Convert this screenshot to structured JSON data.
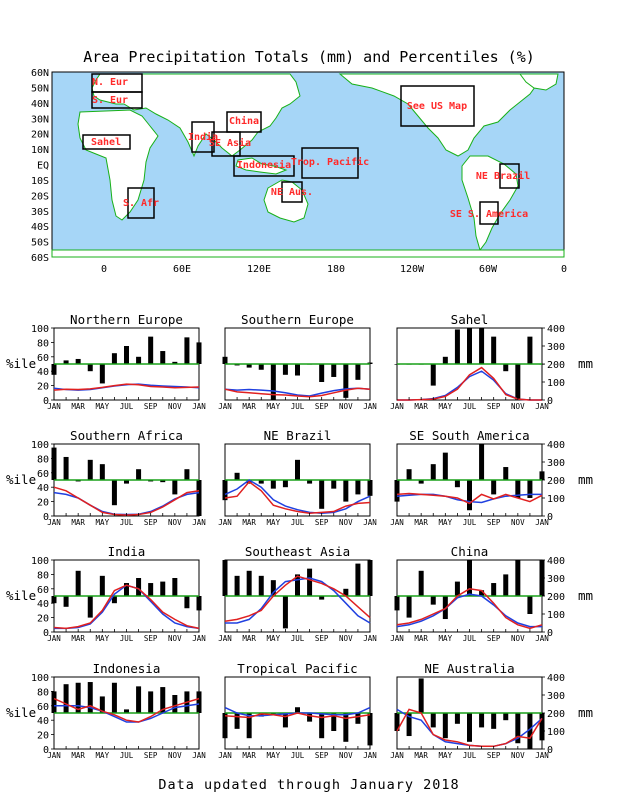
{
  "title": "Area Precipitation Totals (mm) and Percentiles (%)",
  "footer": "Data updated through January 2018",
  "colors": {
    "ocean": "#a6d6f7",
    "land": "#ffffff",
    "coast": "#18b018",
    "region_text": "#ff2a2a",
    "precip_line": "#e02020",
    "normal_line": "#2040e0",
    "median_line": "#18a018",
    "bar": "#000000"
  },
  "map": {
    "lat_labels": [
      "60N",
      "50N",
      "40N",
      "30N",
      "20N",
      "10N",
      "EQ",
      "10S",
      "20S",
      "30S",
      "40S",
      "50S",
      "60S"
    ],
    "lon_labels": [
      "0",
      "60E",
      "120E",
      "180",
      "120W",
      "60W",
      "0"
    ],
    "regions": [
      {
        "label": "N. Eur"
      },
      {
        "label": "S. Eur"
      },
      {
        "label": "Sahel"
      },
      {
        "label": "S. Afr"
      },
      {
        "label": "India"
      },
      {
        "label": "China"
      },
      {
        "label": "SE Asia"
      },
      {
        "label": "Indonesia"
      },
      {
        "label": "Trop. Pacific"
      },
      {
        "label": "NE Aus."
      },
      {
        "label": "See US Map"
      },
      {
        "label": "NE Brazil"
      },
      {
        "label": "SE S. America"
      }
    ]
  },
  "axes": {
    "left_label": "%ile",
    "right_label": "mm",
    "pct_ticks": [
      "0",
      "20",
      "40",
      "60",
      "80",
      "100"
    ],
    "mm_ticks": [
      "0",
      "100",
      "200",
      "300",
      "400"
    ],
    "months": [
      "JAN",
      "MAR",
      "MAY",
      "JUL",
      "SEP",
      "NOV",
      "JAN"
    ]
  },
  "chart_data": [
    {
      "type": "bar",
      "title": "Northern Europe",
      "pct": [
        35,
        55,
        57,
        40,
        23,
        65,
        75,
        60,
        88,
        68,
        53,
        87,
        80
      ],
      "precip": [
        55,
        60,
        58,
        62,
        70,
        80,
        88,
        85,
        75,
        72,
        68,
        70,
        72
      ],
      "normal": [
        65,
        58,
        55,
        58,
        68,
        78,
        85,
        88,
        82,
        78,
        75,
        72,
        68
      ]
    },
    {
      "type": "bar",
      "title": "Southern Europe",
      "pct": [
        60,
        48,
        45,
        42,
        0,
        35,
        34,
        50,
        25,
        32,
        3,
        28,
        52
      ],
      "precip": [
        60,
        45,
        40,
        35,
        30,
        28,
        22,
        18,
        25,
        40,
        55,
        65,
        60
      ],
      "normal": [
        60,
        55,
        58,
        55,
        50,
        40,
        28,
        22,
        38,
        52,
        62,
        65,
        60
      ]
    },
    {
      "type": "bar",
      "title": "Sahel",
      "pct": [
        50,
        50,
        50,
        20,
        60,
        98,
        100,
        100,
        88,
        40,
        0,
        88,
        50
      ],
      "precip": [
        0,
        0,
        2,
        5,
        20,
        60,
        140,
        180,
        120,
        30,
        5,
        0,
        0
      ],
      "normal": [
        0,
        0,
        2,
        8,
        25,
        70,
        130,
        160,
        110,
        35,
        5,
        0,
        0
      ]
    },
    {
      "type": "bar",
      "title": "Southern Africa",
      "pct": [
        95,
        82,
        48,
        78,
        72,
        15,
        45,
        65,
        48,
        47,
        30,
        65,
        0
      ],
      "precip": [
        160,
        140,
        100,
        60,
        20,
        8,
        5,
        8,
        20,
        50,
        90,
        130,
        140
      ],
      "normal": [
        130,
        120,
        100,
        60,
        25,
        10,
        8,
        10,
        25,
        55,
        95,
        120,
        130
      ]
    },
    {
      "type": "bar",
      "title": "NE Brazil",
      "pct": [
        22,
        60,
        45,
        45,
        38,
        40,
        78,
        45,
        10,
        38,
        20,
        30,
        28
      ],
      "precip": [
        100,
        110,
        190,
        140,
        60,
        40,
        25,
        15,
        20,
        25,
        55,
        70,
        75
      ],
      "normal": [
        120,
        150,
        200,
        160,
        90,
        55,
        35,
        20,
        15,
        20,
        40,
        80,
        110
      ]
    },
    {
      "type": "bar",
      "title": "SE South America",
      "pct": [
        20,
        65,
        45,
        72,
        88,
        40,
        8,
        100,
        30,
        68,
        25,
        25,
        62
      ],
      "precip": [
        120,
        125,
        120,
        115,
        110,
        100,
        70,
        120,
        95,
        120,
        100,
        80,
        115
      ],
      "normal": [
        110,
        115,
        120,
        120,
        110,
        90,
        80,
        75,
        95,
        110,
        115,
        120,
        120
      ]
    },
    {
      "type": "bar",
      "title": "India",
      "pct": [
        40,
        35,
        85,
        20,
        78,
        40,
        68,
        75,
        68,
        70,
        75,
        33,
        30
      ],
      "precip": [
        25,
        20,
        30,
        50,
        120,
        230,
        260,
        240,
        180,
        110,
        70,
        35,
        20
      ],
      "normal": [
        20,
        20,
        25,
        45,
        110,
        210,
        260,
        240,
        170,
        100,
        50,
        30,
        20
      ]
    },
    {
      "type": "bar",
      "title": "Southeast Asia",
      "pct": [
        100,
        78,
        85,
        78,
        72,
        5,
        80,
        88,
        45,
        50,
        60,
        95,
        100
      ],
      "precip": [
        60,
        70,
        90,
        120,
        200,
        260,
        310,
        290,
        270,
        240,
        200,
        140,
        80
      ],
      "normal": [
        50,
        50,
        70,
        130,
        220,
        280,
        290,
        300,
        280,
        230,
        160,
        90,
        50
      ]
    },
    {
      "type": "bar",
      "title": "China",
      "pct": [
        30,
        20,
        85,
        38,
        18,
        70,
        100,
        58,
        68,
        80,
        100,
        25,
        100
      ],
      "precip": [
        40,
        50,
        70,
        100,
        130,
        200,
        240,
        230,
        160,
        80,
        40,
        20,
        40
      ],
      "normal": [
        30,
        40,
        60,
        90,
        130,
        190,
        210,
        200,
        150,
        90,
        50,
        30,
        30
      ]
    },
    {
      "type": "bar",
      "title": "Indonesia",
      "pct": [
        80,
        90,
        92,
        93,
        73,
        92,
        55,
        87,
        80,
        86,
        75,
        80,
        80
      ],
      "precip": [
        280,
        250,
        220,
        240,
        210,
        190,
        160,
        150,
        180,
        220,
        240,
        260,
        280
      ],
      "normal": [
        240,
        240,
        240,
        230,
        210,
        180,
        150,
        150,
        170,
        200,
        230,
        240,
        250
      ]
    },
    {
      "type": "bar",
      "title": "Tropical Pacific",
      "pct": [
        15,
        28,
        15,
        45,
        48,
        30,
        58,
        38,
        15,
        25,
        10,
        35,
        5
      ],
      "precip": [
        185,
        180,
        175,
        195,
        190,
        180,
        200,
        185,
        175,
        185,
        170,
        180,
        190
      ],
      "normal": [
        230,
        200,
        185,
        185,
        190,
        195,
        200,
        200,
        195,
        190,
        190,
        200,
        230
      ]
    },
    {
      "type": "bar",
      "title": "NE Australia",
      "pct": [
        25,
        18,
        98,
        30,
        15,
        35,
        10,
        30,
        28,
        40,
        8,
        0,
        12
      ],
      "precip": [
        100,
        220,
        200,
        80,
        50,
        40,
        20,
        15,
        15,
        30,
        70,
        60,
        170
      ],
      "normal": [
        220,
        180,
        160,
        80,
        40,
        30,
        20,
        15,
        15,
        30,
        60,
        110,
        170
      ]
    }
  ]
}
